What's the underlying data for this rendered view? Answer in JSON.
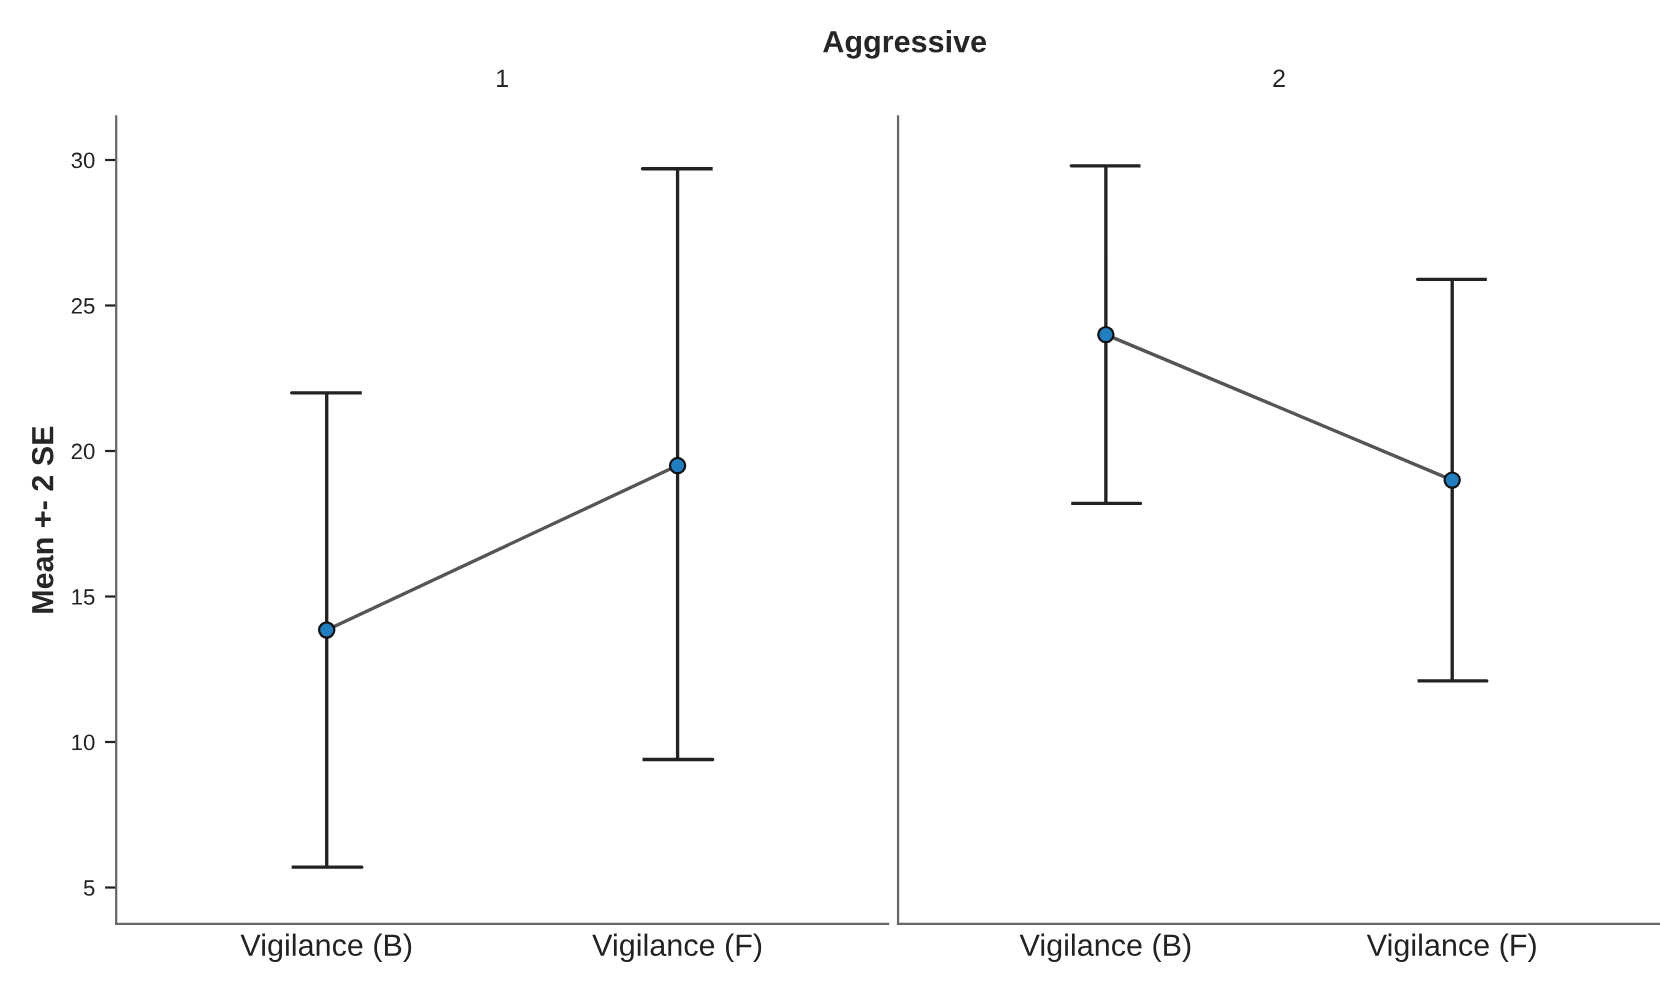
{
  "chart_data": [
    {
      "type": "line",
      "title": "Aggressive",
      "subtitle": "1",
      "ylabel": "Mean +- 2 SE",
      "categories": [
        "Vigilance (B)",
        "Vigilance (F)"
      ],
      "color": "#1f7fc0",
      "values": [
        13.85,
        19.5
      ],
      "errors": [
        [
          5.7,
          22.0
        ],
        [
          9.4,
          29.7
        ]
      ],
      "ylim": [
        3.75,
        31.5
      ],
      "yticks": [
        5,
        10,
        15,
        20,
        25,
        30
      ],
      "marker": "circle",
      "grid": false
    },
    {
      "type": "line",
      "subtitle": "2",
      "categories": [
        "Vigilance (B)",
        "Vigilance (F)"
      ],
      "color": "#1f7fc0",
      "values": [
        24.0,
        19.0
      ],
      "errors": [
        [
          18.2,
          29.8
        ],
        [
          12.1,
          25.9
        ]
      ],
      "ylim": [
        3.75,
        31.5
      ],
      "yticks": [
        5,
        10,
        15,
        20,
        25,
        30
      ],
      "marker": "circle",
      "grid": false,
      "tick_labels": "x"
    }
  ]
}
